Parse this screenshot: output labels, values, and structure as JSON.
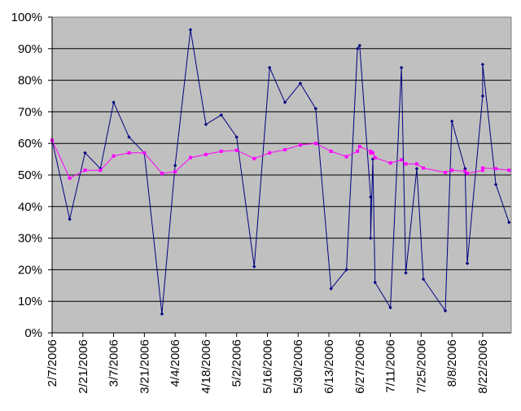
{
  "colors": {
    "plot_background": "#c0c0c0",
    "gridline": "#000000",
    "axis": "#000000",
    "series_1": "#000080",
    "series_2": "#ff00ff"
  },
  "chart_data": {
    "type": "line",
    "title": "",
    "xlabel": "",
    "ylabel": "",
    "grid": true,
    "legend": "none",
    "x_type": "date",
    "xlim": [
      "2006-02-07",
      "2006-09-04"
    ],
    "ylim": [
      0,
      1
    ],
    "y_ticks": [
      {
        "value": 0,
        "label": "0%"
      },
      {
        "value": 0.1,
        "label": "10%"
      },
      {
        "value": 0.2,
        "label": "20%"
      },
      {
        "value": 0.3,
        "label": "30%"
      },
      {
        "value": 0.4,
        "label": "40%"
      },
      {
        "value": 0.5,
        "label": "50%"
      },
      {
        "value": 0.6,
        "label": "60%"
      },
      {
        "value": 0.7,
        "label": "70%"
      },
      {
        "value": 0.8,
        "label": "80%"
      },
      {
        "value": 0.9,
        "label": "90%"
      },
      {
        "value": 1.0,
        "label": "100%"
      }
    ],
    "x_ticks": [
      {
        "value": "2006-02-07",
        "label": "2/7/2006"
      },
      {
        "value": "2006-02-21",
        "label": "2/21/2006"
      },
      {
        "value": "2006-03-07",
        "label": "3/7/2006"
      },
      {
        "value": "2006-03-21",
        "label": "3/21/2006"
      },
      {
        "value": "2006-04-04",
        "label": "4/4/2006"
      },
      {
        "value": "2006-04-18",
        "label": "4/18/2006"
      },
      {
        "value": "2006-05-02",
        "label": "5/2/2006"
      },
      {
        "value": "2006-05-16",
        "label": "5/16/2006"
      },
      {
        "value": "2006-05-30",
        "label": "5/30/2006"
      },
      {
        "value": "2006-06-13",
        "label": "6/13/2006"
      },
      {
        "value": "2006-06-27",
        "label": "6/27/2006"
      },
      {
        "value": "2006-07-11",
        "label": "7/11/2006"
      },
      {
        "value": "2006-07-25",
        "label": "7/25/2006"
      },
      {
        "value": "2006-08-08",
        "label": "8/8/2006"
      },
      {
        "value": "2006-08-22",
        "label": "8/22/2006"
      }
    ],
    "series": [
      {
        "marker": "diamond",
        "points": [
          {
            "x": "2006-02-07",
            "y": 0.61
          },
          {
            "x": "2006-02-15",
            "y": 0.36
          },
          {
            "x": "2006-02-22",
            "y": 0.57
          },
          {
            "x": "2006-03-01",
            "y": 0.52
          },
          {
            "x": "2006-03-07",
            "y": 0.73
          },
          {
            "x": "2006-03-14",
            "y": 0.62
          },
          {
            "x": "2006-03-21",
            "y": 0.57
          },
          {
            "x": "2006-03-29",
            "y": 0.06
          },
          {
            "x": "2006-04-04",
            "y": 0.53
          },
          {
            "x": "2006-04-11",
            "y": 0.96
          },
          {
            "x": "2006-04-18",
            "y": 0.66
          },
          {
            "x": "2006-04-25",
            "y": 0.69
          },
          {
            "x": "2006-05-02",
            "y": 0.62
          },
          {
            "x": "2006-05-10",
            "y": 0.21
          },
          {
            "x": "2006-05-17",
            "y": 0.84
          },
          {
            "x": "2006-05-24",
            "y": 0.73
          },
          {
            "x": "2006-05-31",
            "y": 0.79
          },
          {
            "x": "2006-06-07",
            "y": 0.71
          },
          {
            "x": "2006-06-14",
            "y": 0.14
          },
          {
            "x": "2006-06-21",
            "y": 0.2
          },
          {
            "x": "2006-06-26",
            "y": 0.9
          },
          {
            "x": "2006-06-27",
            "y": 0.91
          },
          {
            "x": "2006-07-02",
            "y": 0.43
          },
          {
            "x": "2006-07-02",
            "y": 0.3
          },
          {
            "x": "2006-07-03",
            "y": 0.55
          },
          {
            "x": "2006-07-04",
            "y": 0.16
          },
          {
            "x": "2006-07-11",
            "y": 0.08
          },
          {
            "x": "2006-07-16",
            "y": 0.84
          },
          {
            "x": "2006-07-18",
            "y": 0.19
          },
          {
            "x": "2006-07-23",
            "y": 0.52
          },
          {
            "x": "2006-07-26",
            "y": 0.17
          },
          {
            "x": "2006-08-05",
            "y": 0.07
          },
          {
            "x": "2006-08-08",
            "y": 0.67
          },
          {
            "x": "2006-08-14",
            "y": 0.52
          },
          {
            "x": "2006-08-15",
            "y": 0.22
          },
          {
            "x": "2006-08-22",
            "y": 0.75
          },
          {
            "x": "2006-08-22",
            "y": 0.85
          },
          {
            "x": "2006-08-28",
            "y": 0.47
          },
          {
            "x": "2006-09-03",
            "y": 0.35
          }
        ]
      },
      {
        "marker": "square",
        "points": [
          {
            "x": "2006-02-07",
            "y": 0.61
          },
          {
            "x": "2006-02-15",
            "y": 0.49
          },
          {
            "x": "2006-02-22",
            "y": 0.515
          },
          {
            "x": "2006-03-01",
            "y": 0.515
          },
          {
            "x": "2006-03-07",
            "y": 0.56
          },
          {
            "x": "2006-03-14",
            "y": 0.57
          },
          {
            "x": "2006-03-21",
            "y": 0.57
          },
          {
            "x": "2006-03-29",
            "y": 0.505
          },
          {
            "x": "2006-04-04",
            "y": 0.51
          },
          {
            "x": "2006-04-11",
            "y": 0.555
          },
          {
            "x": "2006-04-18",
            "y": 0.565
          },
          {
            "x": "2006-04-25",
            "y": 0.575
          },
          {
            "x": "2006-05-02",
            "y": 0.578
          },
          {
            "x": "2006-05-10",
            "y": 0.552
          },
          {
            "x": "2006-05-17",
            "y": 0.57
          },
          {
            "x": "2006-05-24",
            "y": 0.58
          },
          {
            "x": "2006-05-31",
            "y": 0.595
          },
          {
            "x": "2006-06-07",
            "y": 0.6
          },
          {
            "x": "2006-06-14",
            "y": 0.575
          },
          {
            "x": "2006-06-21",
            "y": 0.558
          },
          {
            "x": "2006-06-26",
            "y": 0.575
          },
          {
            "x": "2006-06-27",
            "y": 0.59
          },
          {
            "x": "2006-07-02",
            "y": 0.575
          },
          {
            "x": "2006-07-02",
            "y": 0.57
          },
          {
            "x": "2006-07-03",
            "y": 0.57
          },
          {
            "x": "2006-07-04",
            "y": 0.555
          },
          {
            "x": "2006-07-11",
            "y": 0.538
          },
          {
            "x": "2006-07-16",
            "y": 0.548
          },
          {
            "x": "2006-07-18",
            "y": 0.535
          },
          {
            "x": "2006-07-23",
            "y": 0.535
          },
          {
            "x": "2006-07-26",
            "y": 0.522
          },
          {
            "x": "2006-08-05",
            "y": 0.508
          },
          {
            "x": "2006-08-08",
            "y": 0.515
          },
          {
            "x": "2006-08-14",
            "y": 0.512
          },
          {
            "x": "2006-08-15",
            "y": 0.505
          },
          {
            "x": "2006-08-22",
            "y": 0.515
          },
          {
            "x": "2006-08-22",
            "y": 0.522
          },
          {
            "x": "2006-08-28",
            "y": 0.52
          },
          {
            "x": "2006-09-03",
            "y": 0.515
          }
        ]
      }
    ]
  }
}
